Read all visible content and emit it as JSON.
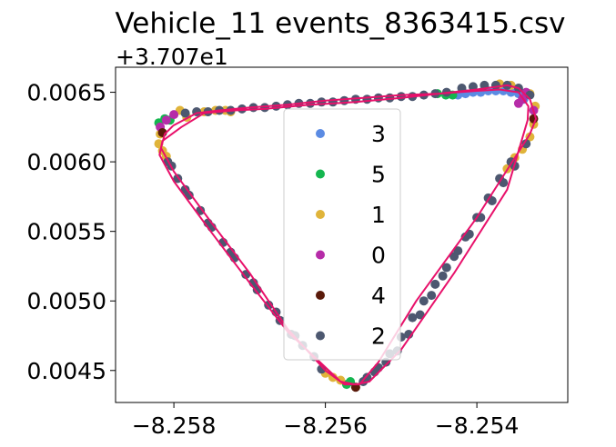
{
  "chart_data": {
    "type": "scatter",
    "title": "Vehicle_11 events_8363415.csv",
    "y_offset_label": "+3.707e1",
    "xlim": [
      -8.25877,
      -8.2528
    ],
    "ylim": [
      0.00427,
      0.00668
    ],
    "x_ticks": [
      -8.258,
      -8.256,
      -8.254
    ],
    "x_tick_labels": [
      "−8.258",
      "−8.256",
      "−8.254"
    ],
    "y_ticks": [
      0.0045,
      0.005,
      0.0055,
      0.006,
      0.0065
    ],
    "y_tick_labels": [
      "0.0045",
      "0.0050",
      "0.0055",
      "0.0060",
      "0.0065"
    ],
    "grid": false,
    "legend_position": "center",
    "trajectory_color": "#e8106a",
    "trajectory": [
      [
        -8.25801,
        0.00626
      ],
      [
        -8.2577,
        0.00635
      ],
      [
        -8.2574,
        0.00637
      ],
      [
        -8.257,
        0.00639
      ],
      [
        -8.2565,
        0.00641
      ],
      [
        -8.256,
        0.00644
      ],
      [
        -8.2555,
        0.00646
      ],
      [
        -8.255,
        0.00648
      ],
      [
        -8.2545,
        0.00649
      ],
      [
        -8.254,
        0.00651
      ],
      [
        -8.2537,
        0.00652
      ],
      [
        -8.25345,
        0.0065
      ],
      [
        -8.25332,
        0.0064
      ],
      [
        -8.25333,
        0.0063
      ],
      [
        -8.2536,
        0.0058
      ],
      [
        -8.2543,
        0.0052
      ],
      [
        -8.255,
        0.00465
      ],
      [
        -8.25542,
        0.00442
      ],
      [
        -8.2556,
        0.0044
      ],
      [
        -8.2558,
        0.00442
      ],
      [
        -8.2565,
        0.00478
      ],
      [
        -8.257,
        0.00513
      ],
      [
        -8.2575,
        0.00549
      ],
      [
        -8.258,
        0.00586
      ],
      [
        -8.25819,
        0.00605
      ],
      [
        -8.25815,
        0.00615
      ],
      [
        -8.2579,
        0.00625
      ],
      [
        -8.2576,
        0.00635
      ],
      [
        -8.2572,
        0.00637
      ],
      [
        -8.2568,
        0.00638
      ],
      [
        -8.2562,
        0.00641
      ],
      [
        -8.2556,
        0.00643
      ],
      [
        -8.255,
        0.00646
      ],
      [
        -8.2545,
        0.00649
      ],
      [
        -8.254,
        0.00652
      ],
      [
        -8.2536,
        0.00655
      ],
      [
        -8.25345,
        0.00653
      ],
      [
        -8.2533,
        0.00645
      ],
      [
        -8.25322,
        0.00631
      ],
      [
        -8.2533,
        0.0062
      ],
      [
        -8.254,
        0.0056
      ],
      [
        -8.2548,
        0.005
      ],
      [
        -8.2553,
        0.00456
      ],
      [
        -8.25555,
        0.0044
      ],
      [
        -8.25575,
        0.0044
      ],
      [
        -8.256,
        0.0045
      ],
      [
        -8.2565,
        0.0048
      ],
      [
        -8.257,
        0.0052
      ],
      [
        -8.2575,
        0.00556
      ],
      [
        -8.258,
        0.00593
      ],
      [
        -8.25817,
        0.0061
      ],
      [
        -8.25812,
        0.0062
      ],
      [
        -8.25801,
        0.00626
      ]
    ],
    "series": [
      {
        "name": "3",
        "color": "#5b8be3",
        "points": [
          [
            -8.25425,
            0.00648
          ],
          [
            -8.25415,
            0.00649
          ],
          [
            -8.25405,
            0.0065
          ],
          [
            -8.25395,
            0.0065
          ],
          [
            -8.25385,
            0.00651
          ],
          [
            -8.25375,
            0.00651
          ],
          [
            -8.25365,
            0.00651
          ],
          [
            -8.25355,
            0.0065
          ],
          [
            -8.25345,
            0.00649
          ],
          [
            -8.25338,
            0.00645
          ]
        ]
      },
      {
        "name": "5",
        "color": "#14b64f",
        "points": [
          [
            -8.25441,
            0.00648
          ],
          [
            -8.25432,
            0.00648
          ],
          [
            -8.25812,
            0.00631
          ],
          [
            -8.25805,
            0.0063
          ],
          [
            -8.25567,
            0.00442
          ],
          [
            -8.25572,
            0.0044
          ],
          [
            -8.2582,
            0.00628
          ],
          [
            -8.25452,
            0.00649
          ]
        ]
      },
      {
        "name": "1",
        "color": "#e0b43a",
        "points": [
          [
            -8.2576,
            0.00636
          ],
          [
            -8.25745,
            0.00637
          ],
          [
            -8.25732,
            0.00637
          ],
          [
            -8.25725,
            0.00636
          ],
          [
            -8.25818,
            0.0062
          ],
          [
            -8.2582,
            0.00613
          ],
          [
            -8.25815,
            0.00608
          ],
          [
            -8.2581,
            0.00604
          ],
          [
            -8.2537,
            0.00656
          ],
          [
            -8.25355,
            0.00655
          ],
          [
            -8.2533,
            0.00649
          ],
          [
            -8.25323,
            0.0064
          ],
          [
            -8.25325,
            0.00627
          ],
          [
            -8.2533,
            0.00618
          ],
          [
            -8.2534,
            0.00609
          ],
          [
            -8.2535,
            0.00603
          ],
          [
            -8.2536,
            0.00595
          ],
          [
            -8.2558,
            0.00443
          ],
          [
            -8.2559,
            0.00445
          ],
          [
            -8.256,
            0.00448
          ],
          [
            -8.25792,
            0.00637
          ],
          [
            -8.25783,
            0.00632
          ]
        ]
      },
      {
        "name": "0",
        "color": "#b62ca8",
        "points": [
          [
            -8.25818,
            0.00625
          ],
          [
            -8.2581,
            0.0063
          ],
          [
            -8.258,
            0.00634
          ],
          [
            -8.25335,
            0.0065
          ],
          [
            -8.2534,
            0.00645
          ],
          [
            -8.25325,
            0.00637
          ],
          [
            -8.25345,
            0.00642
          ]
        ]
      },
      {
        "name": "4",
        "color": "#5a1a0a",
        "points": [
          [
            -8.25815,
            0.00621
          ],
          [
            -8.25325,
            0.00631
          ],
          [
            -8.2556,
            0.00438
          ]
        ]
      },
      {
        "name": "2",
        "color": "#4d5870",
        "points": [
          [
            -8.25785,
            0.00635
          ],
          [
            -8.2577,
            0.00636
          ],
          [
            -8.25755,
            0.00636
          ],
          [
            -8.2574,
            0.00637
          ],
          [
            -8.25725,
            0.00637
          ],
          [
            -8.2571,
            0.00638
          ],
          [
            -8.25695,
            0.00639
          ],
          [
            -8.2568,
            0.00639
          ],
          [
            -8.25665,
            0.0064
          ],
          [
            -8.2565,
            0.00641
          ],
          [
            -8.25635,
            0.00642
          ],
          [
            -8.2562,
            0.00642
          ],
          [
            -8.25605,
            0.00643
          ],
          [
            -8.2559,
            0.00643
          ],
          [
            -8.25575,
            0.00644
          ],
          [
            -8.2556,
            0.00645
          ],
          [
            -8.25545,
            0.00645
          ],
          [
            -8.2553,
            0.00646
          ],
          [
            -8.25515,
            0.00646
          ],
          [
            -8.255,
            0.00647
          ],
          [
            -8.25485,
            0.00647
          ],
          [
            -8.2547,
            0.00648
          ],
          [
            -8.25455,
            0.00649
          ],
          [
            -8.2544,
            0.0065
          ],
          [
            -8.2542,
            0.00653
          ],
          [
            -8.25405,
            0.00654
          ],
          [
            -8.2539,
            0.00655
          ],
          [
            -8.25375,
            0.00655
          ],
          [
            -8.2536,
            0.00655
          ],
          [
            -8.25345,
            0.00653
          ],
          [
            -8.2533,
            0.00648
          ],
          [
            -8.25335,
            0.00613
          ],
          [
            -8.2535,
            0.00597
          ],
          [
            -8.25365,
            0.00585
          ],
          [
            -8.2538,
            0.00572
          ],
          [
            -8.25395,
            0.0056
          ],
          [
            -8.2541,
            0.00548
          ],
          [
            -8.25425,
            0.00536
          ],
          [
            -8.2544,
            0.00524
          ],
          [
            -8.25455,
            0.00512
          ],
          [
            -8.2547,
            0.005
          ],
          [
            -8.25485,
            0.00488
          ],
          [
            -8.255,
            0.00474
          ],
          [
            -8.25515,
            0.00462
          ],
          [
            -8.2553,
            0.00452
          ],
          [
            -8.25545,
            0.00445
          ],
          [
            -8.25355,
            0.006
          ],
          [
            -8.2537,
            0.00588
          ],
          [
            -8.25385,
            0.00574
          ],
          [
            -8.254,
            0.0056
          ],
          [
            -8.25415,
            0.00546
          ],
          [
            -8.2543,
            0.00532
          ],
          [
            -8.25445,
            0.00518
          ],
          [
            -8.2546,
            0.00504
          ],
          [
            -8.25475,
            0.0049
          ],
          [
            -8.2549,
            0.00476
          ],
          [
            -8.25505,
            0.00464
          ],
          [
            -8.2552,
            0.00456
          ],
          [
            -8.25535,
            0.00449
          ],
          [
            -8.2555,
            0.00442
          ],
          [
            -8.25615,
            0.0046
          ],
          [
            -8.2563,
            0.00468
          ],
          [
            -8.25645,
            0.00476
          ],
          [
            -8.2566,
            0.00486
          ],
          [
            -8.25675,
            0.00497
          ],
          [
            -8.2569,
            0.00508
          ],
          [
            -8.25705,
            0.00519
          ],
          [
            -8.2572,
            0.00531
          ],
          [
            -8.25735,
            0.00542
          ],
          [
            -8.2575,
            0.00553
          ],
          [
            -8.25765,
            0.00565
          ],
          [
            -8.2578,
            0.00576
          ],
          [
            -8.25795,
            0.00588
          ],
          [
            -8.25808,
            0.006
          ],
          [
            -8.25605,
            0.00451
          ],
          [
            -8.2564,
            0.00475
          ],
          [
            -8.25665,
            0.00492
          ],
          [
            -8.25695,
            0.00513
          ],
          [
            -8.25725,
            0.00535
          ],
          [
            -8.25755,
            0.00556
          ],
          [
            -8.25785,
            0.0058
          ],
          [
            -8.25803,
            0.00597
          ]
        ]
      }
    ]
  }
}
